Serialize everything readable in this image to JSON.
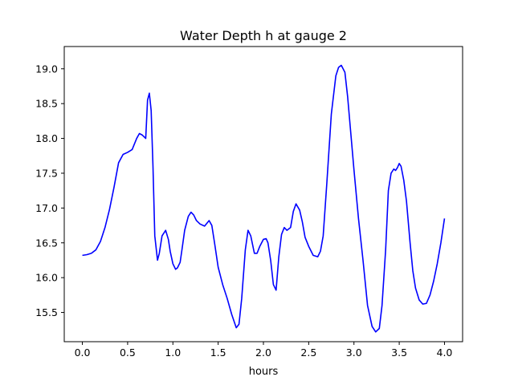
{
  "chart_data": {
    "type": "line",
    "title": "Water Depth h at gauge 2",
    "xlabel": "hours",
    "ylabel": "",
    "xlim": [
      -0.2,
      4.2
    ],
    "ylim": [
      15.08,
      19.32
    ],
    "xticks": [
      0.0,
      0.5,
      1.0,
      1.5,
      2.0,
      2.5,
      3.0,
      3.5,
      4.0
    ],
    "xtick_labels": [
      "0.0",
      "0.5",
      "1.0",
      "1.5",
      "2.0",
      "2.5",
      "3.0",
      "3.5",
      "4.0"
    ],
    "yticks": [
      15.5,
      16.0,
      16.5,
      17.0,
      17.5,
      18.0,
      18.5,
      19.0
    ],
    "ytick_labels": [
      "15.5",
      "16.0",
      "16.5",
      "17.0",
      "17.5",
      "18.0",
      "18.5",
      "19.0"
    ],
    "grid": false,
    "series": [
      {
        "color": "#0000ff",
        "x": [
          0.0,
          0.05,
          0.1,
          0.15,
          0.2,
          0.25,
          0.3,
          0.35,
          0.4,
          0.45,
          0.5,
          0.55,
          0.6,
          0.63,
          0.66,
          0.7,
          0.72,
          0.74,
          0.76,
          0.78,
          0.8,
          0.83,
          0.85,
          0.88,
          0.92,
          0.95,
          0.97,
          1.0,
          1.03,
          1.05,
          1.08,
          1.1,
          1.13,
          1.17,
          1.2,
          1.23,
          1.26,
          1.3,
          1.35,
          1.4,
          1.43,
          1.46,
          1.5,
          1.55,
          1.6,
          1.65,
          1.7,
          1.73,
          1.76,
          1.8,
          1.83,
          1.86,
          1.9,
          1.93,
          1.96,
          2.0,
          2.03,
          2.05,
          2.08,
          2.11,
          2.14,
          2.17,
          2.2,
          2.23,
          2.26,
          2.3,
          2.33,
          2.36,
          2.4,
          2.43,
          2.46,
          2.5,
          2.55,
          2.6,
          2.63,
          2.66,
          2.7,
          2.75,
          2.8,
          2.83,
          2.86,
          2.9,
          2.93,
          2.97,
          3.0,
          3.05,
          3.1,
          3.15,
          3.2,
          3.24,
          3.28,
          3.31,
          3.35,
          3.38,
          3.41,
          3.44,
          3.46,
          3.48,
          3.5,
          3.52,
          3.55,
          3.58,
          3.62,
          3.65,
          3.68,
          3.72,
          3.76,
          3.8,
          3.84,
          3.88,
          3.92,
          3.96,
          4.0
        ],
        "y": [
          16.32,
          16.33,
          16.35,
          16.4,
          16.52,
          16.72,
          16.98,
          17.3,
          17.65,
          17.77,
          17.8,
          17.84,
          18.0,
          18.07,
          18.05,
          18.0,
          18.55,
          18.65,
          18.4,
          17.6,
          16.6,
          16.25,
          16.35,
          16.6,
          16.68,
          16.55,
          16.38,
          16.2,
          16.12,
          16.14,
          16.22,
          16.4,
          16.68,
          16.88,
          16.94,
          16.9,
          16.82,
          16.77,
          16.74,
          16.82,
          16.75,
          16.5,
          16.15,
          15.9,
          15.7,
          15.47,
          15.28,
          15.33,
          15.7,
          16.4,
          16.68,
          16.6,
          16.35,
          16.35,
          16.45,
          16.55,
          16.56,
          16.5,
          16.25,
          15.9,
          15.82,
          16.3,
          16.62,
          16.72,
          16.68,
          16.72,
          16.95,
          17.06,
          16.97,
          16.8,
          16.58,
          16.45,
          16.32,
          16.3,
          16.38,
          16.6,
          17.35,
          18.35,
          18.9,
          19.02,
          19.05,
          18.95,
          18.6,
          18.0,
          17.55,
          16.85,
          16.25,
          15.6,
          15.3,
          15.22,
          15.27,
          15.6,
          16.4,
          17.25,
          17.5,
          17.56,
          17.54,
          17.58,
          17.64,
          17.6,
          17.4,
          17.1,
          16.5,
          16.1,
          15.85,
          15.68,
          15.62,
          15.63,
          15.75,
          15.95,
          16.2,
          16.5,
          16.85
        ]
      }
    ]
  }
}
